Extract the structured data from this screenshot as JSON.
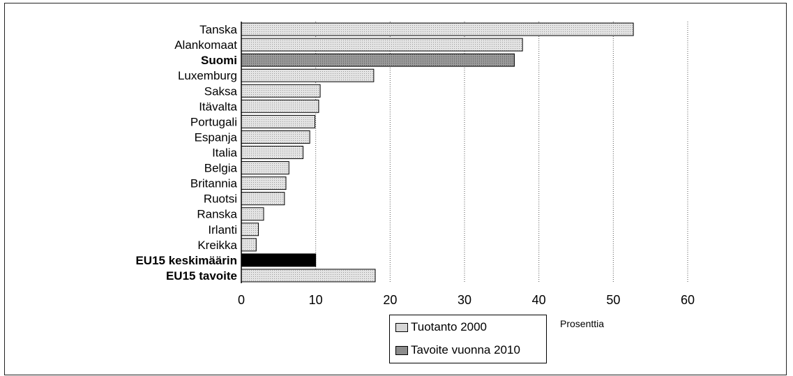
{
  "chart_data": {
    "type": "bar",
    "orientation": "horizontal",
    "categories": [
      "Tanska",
      "Alankomaat",
      "Suomi",
      "Luxemburg",
      "Saksa",
      "Itävalta",
      "Portugali",
      "Espanja",
      "Italia",
      "Belgia",
      "Britannia",
      "Ruotsi",
      "Ranska",
      "Irlanti",
      "Kreikka",
      "EU15 keskimäärin",
      "EU15 tavoite"
    ],
    "bold_categories": [
      "Suomi",
      "EU15 keskimäärin",
      "EU15 tavoite"
    ],
    "values": [
      52.7,
      37.8,
      36.7,
      17.8,
      10.6,
      10.4,
      9.9,
      9.2,
      8.3,
      6.4,
      6.0,
      5.8,
      3.0,
      2.3,
      2.0,
      10.0,
      18.0
    ],
    "value_series": [
      "Tuotanto 2000",
      "Tuotanto 2000",
      "Tavoite vuonna 2010",
      "Tuotanto 2000",
      "Tuotanto 2000",
      "Tuotanto 2000",
      "Tuotanto 2000",
      "Tuotanto 2000",
      "Tuotanto 2000",
      "Tuotanto 2000",
      "Tuotanto 2000",
      "Tuotanto 2000",
      "Tuotanto 2000",
      "Tuotanto 2000",
      "Tuotanto 2000",
      "",
      "Tuotanto 2000"
    ],
    "series": [
      {
        "name": "Tuotanto 2000",
        "color": "#d6d6d6"
      },
      {
        "name": "Tavoite vuonna 2010",
        "color": "#8c8c8c"
      }
    ],
    "highlight_color": "#000000",
    "xlim": [
      0,
      60
    ],
    "xticks": [
      0,
      10,
      20,
      30,
      40,
      50,
      60
    ],
    "xlabel": "Prosenttia",
    "grid": "vertical dotted",
    "legend_position": "bottom-center"
  }
}
